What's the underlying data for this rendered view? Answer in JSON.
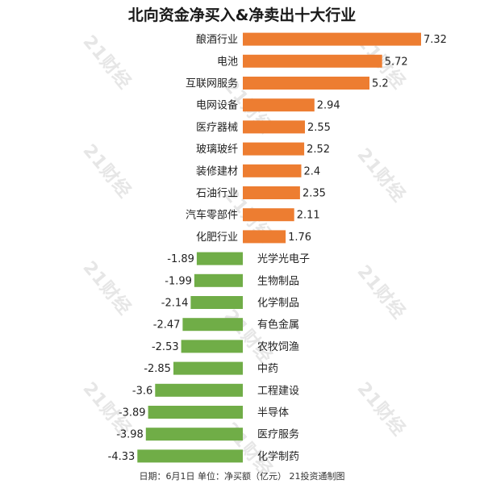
{
  "title": "北向资金净买入&净卖出十大行业",
  "footer": "日期：6月1日 单位：净买额（亿元） 21投资通制图",
  "watermark": "21财经",
  "colors": {
    "positive": "#ED7D31",
    "negative": "#70AD47",
    "text": "#222222"
  },
  "chart_data": {
    "type": "bar",
    "orientation": "horizontal",
    "title": "北向资金净买入&净卖出十大行业",
    "categories": [
      "酿酒行业",
      "电池",
      "互联网服务",
      "电网设备",
      "医疗器械",
      "玻璃玻纤",
      "装修建材",
      "石油行业",
      "汽车零部件",
      "化肥行业",
      "光学光电子",
      "生物制品",
      "化学制品",
      "有色金属",
      "农牧饲渔",
      "中药",
      "工程建设",
      "半导体",
      "医疗服务",
      "化学制药"
    ],
    "values": [
      7.32,
      5.72,
      5.2,
      2.94,
      2.55,
      2.52,
      2.4,
      2.35,
      2.11,
      1.76,
      -1.89,
      -1.99,
      -2.14,
      -2.47,
      -2.53,
      -2.85,
      -3.6,
      -3.89,
      -3.98,
      -4.33
    ],
    "value_labels": [
      "7.32",
      "5.72",
      "5.2",
      "2.94",
      "2.55",
      "2.52",
      "2.4",
      "2.35",
      "2.11",
      "1.76",
      "-1.89",
      "-1.99",
      "-2.14",
      "-2.47",
      "-2.53",
      "-2.85",
      "-3.6",
      "-3.89",
      "-3.98",
      "-4.33"
    ],
    "xlim": [
      -4.5,
      7.6
    ],
    "grid": false,
    "legend": "none",
    "unit": "亿元"
  }
}
